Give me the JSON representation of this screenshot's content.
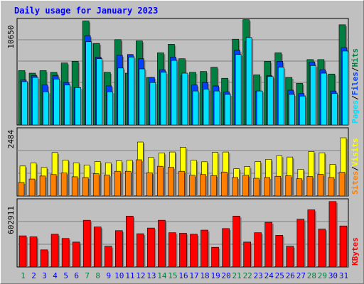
{
  "title": "Daily usage for January 2023",
  "colors": {
    "title": "#0000ff",
    "pages": "#00e0ff",
    "files": "#0040ff",
    "hits": "#008040",
    "visits": "#ffff00",
    "sites": "#ff8000",
    "kbytes": "#ff0000",
    "weekend_day": "#008040",
    "weekday": "#0000ff"
  },
  "chart_data": [
    {
      "type": "bar",
      "panel": "hits-files-pages",
      "tick_label": "10650",
      "ylim": [
        0,
        12540
      ],
      "legend": [
        {
          "label": "Pages",
          "color": "#00e0ff"
        },
        {
          "label": "/",
          "color": "#000000"
        },
        {
          "label": "Files",
          "color": "#0040ff"
        },
        {
          "label": "/",
          "color": "#000000"
        },
        {
          "label": "Hits",
          "color": "#008040"
        }
      ],
      "series": [
        {
          "name": "Hits",
          "values": [
            6400,
            6100,
            6400,
            6200,
            7300,
            7500,
            12250,
            9600,
            6200,
            10050,
            6100,
            9900,
            5600,
            8500,
            9500,
            7800,
            6200,
            6300,
            6800,
            5500,
            10100,
            12400,
            5900,
            7500,
            8500,
            5600,
            4900,
            7700,
            7700,
            6000,
            11800
          ]
        },
        {
          "name": "Files",
          "values": [
            5300,
            5800,
            4700,
            5800,
            5000,
            4400,
            10500,
            8000,
            4600,
            8200,
            8300,
            7800,
            5600,
            6500,
            8000,
            5800,
            4700,
            5000,
            4600,
            3900,
            8800,
            9800,
            4000,
            5800,
            7500,
            4100,
            3700,
            7400,
            6500,
            4000,
            9100
          ]
        },
        {
          "name": "Pages",
          "values": [
            5100,
            5600,
            3900,
            5400,
            4700,
            4400,
            9800,
            7800,
            3900,
            6700,
            8000,
            6600,
            5000,
            6200,
            7600,
            6100,
            4000,
            4200,
            4000,
            3600,
            8300,
            10300,
            4000,
            5700,
            6800,
            3600,
            3400,
            7000,
            6100,
            3700,
            8700
          ]
        }
      ]
    },
    {
      "type": "bar",
      "panel": "visits-sites",
      "tick_label": "2484",
      "ylim": [
        0,
        2730
      ],
      "legend": [
        {
          "label": "Sites",
          "color": "#ff8000"
        },
        {
          "label": "/",
          "color": "#000000"
        },
        {
          "label": "Visits",
          "color": "#ffff00"
        }
      ],
      "series": [
        {
          "name": "Visits",
          "values": [
            1200,
            1320,
            1140,
            1740,
            1440,
            1330,
            1240,
            1380,
            1330,
            1410,
            1430,
            2160,
            1540,
            1720,
            1760,
            1950,
            1430,
            1370,
            1750,
            1760,
            1090,
            1180,
            1380,
            1470,
            1610,
            1560,
            1070,
            1780,
            1730,
            1270,
            2330
          ]
        },
        {
          "name": "Sites",
          "values": [
            540,
            680,
            800,
            860,
            920,
            770,
            740,
            890,
            840,
            990,
            990,
            1450,
            930,
            1190,
            1150,
            990,
            830,
            860,
            820,
            960,
            740,
            830,
            710,
            740,
            790,
            810,
            690,
            780,
            870,
            740,
            950
          ]
        }
      ]
    },
    {
      "type": "bar",
      "panel": "kbytes",
      "tick_label": "602911",
      "ylim": [
        0,
        656000
      ],
      "legend": [
        {
          "label": "KBytes",
          "color": "#ff0000"
        }
      ],
      "series": [
        {
          "name": "KBytes",
          "values": [
            300000,
            290000,
            165000,
            315000,
            275000,
            240000,
            450000,
            385000,
            200000,
            350000,
            490000,
            320000,
            375000,
            450000,
            330000,
            325000,
            315000,
            355000,
            190000,
            370000,
            490000,
            240000,
            330000,
            430000,
            305000,
            200000,
            460000,
            550000,
            365000,
            630000,
            395000
          ]
        }
      ]
    }
  ],
  "x_labels": [
    "1",
    "2",
    "3",
    "4",
    "5",
    "6",
    "7",
    "8",
    "9",
    "10",
    "11",
    "12",
    "13",
    "14",
    "15",
    "16",
    "17",
    "18",
    "19",
    "20",
    "21",
    "22",
    "23",
    "24",
    "25",
    "26",
    "27",
    "28",
    "29",
    "30",
    "31"
  ],
  "weekend_days": [
    1,
    7,
    8,
    14,
    15,
    21,
    22,
    28,
    29
  ]
}
